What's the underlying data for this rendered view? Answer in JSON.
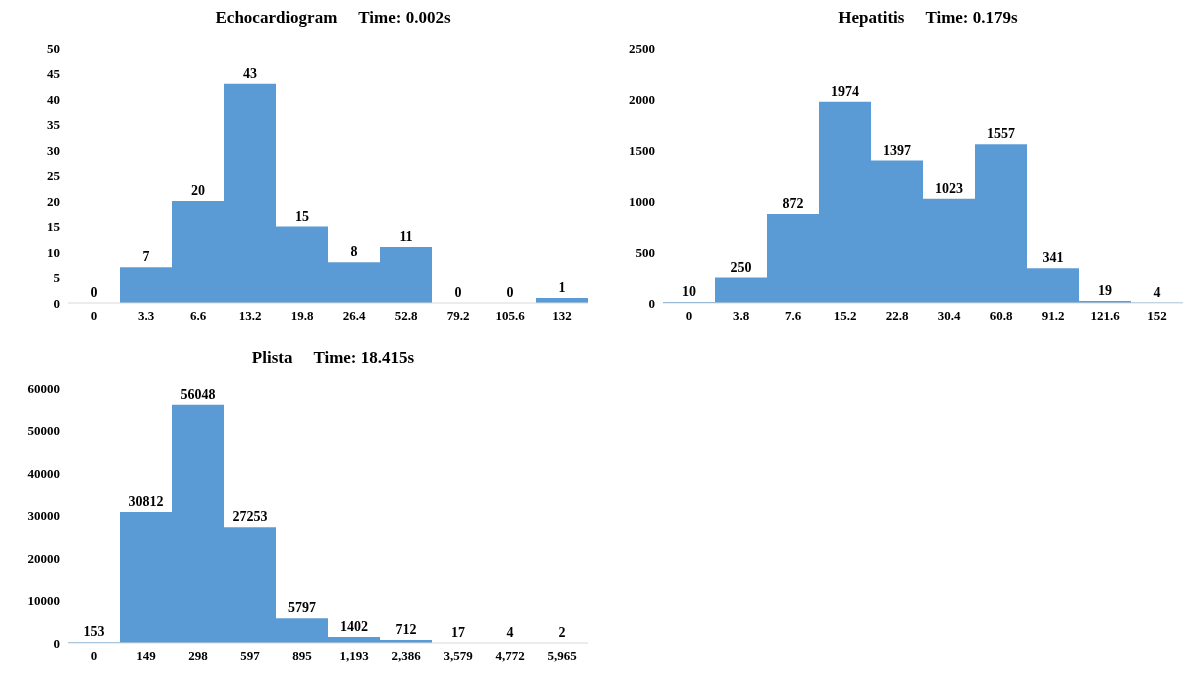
{
  "chart_data": [
    {
      "type": "bar",
      "title": "Echocardiogram     Time: 0.002s",
      "categories": [
        "0",
        "3.3",
        "6.6",
        "13.2",
        "19.8",
        "26.4",
        "52.8",
        "79.2",
        "105.6",
        "132"
      ],
      "values": [
        0,
        7,
        20,
        43,
        15,
        8,
        11,
        0,
        0,
        1
      ],
      "color": "#5b9bd5",
      "ylim": [
        0,
        50
      ],
      "yticks": [
        0,
        5,
        10,
        15,
        20,
        25,
        30,
        35,
        40,
        45,
        50
      ],
      "grid": false,
      "data_labels": true
    },
    {
      "type": "bar",
      "title": "Hepatitis     Time: 0.179s",
      "categories": [
        "0",
        "3.8",
        "7.6",
        "15.2",
        "22.8",
        "30.4",
        "60.8",
        "91.2",
        "121.6",
        "152"
      ],
      "values": [
        10,
        250,
        872,
        1974,
        1397,
        1023,
        1557,
        341,
        19,
        4
      ],
      "color": "#5b9bd5",
      "ylim": [
        0,
        2500
      ],
      "yticks": [
        0,
        500,
        1000,
        1500,
        2000,
        2500
      ],
      "grid": false,
      "data_labels": true
    },
    {
      "type": "bar",
      "title": "Plista     Time: 18.415s",
      "categories": [
        "0",
        "149",
        "298",
        "597",
        "895",
        "1,193",
        "2,386",
        "3,579",
        "4,772",
        "5,965"
      ],
      "values": [
        153,
        30812,
        56048,
        27253,
        5797,
        1402,
        712,
        17,
        4,
        2
      ],
      "color": "#5b9bd5",
      "ylim": [
        0,
        60000
      ],
      "yticks": [
        0,
        10000,
        20000,
        30000,
        40000,
        50000,
        60000
      ],
      "grid": false,
      "data_labels": true
    }
  ]
}
